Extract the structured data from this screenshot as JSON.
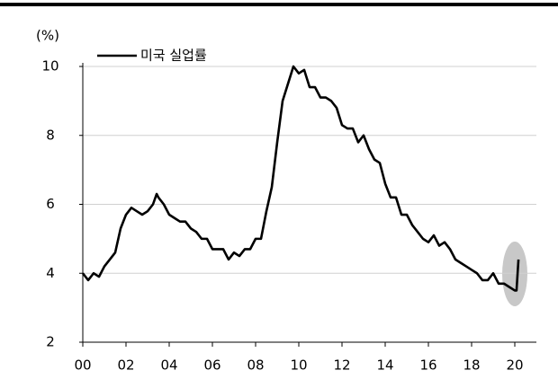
{
  "chart_data": {
    "type": "line",
    "y_unit": "(%)",
    "x": [
      0,
      0.25,
      0.5,
      0.75,
      1,
      1.25,
      1.5,
      1.75,
      2,
      2.25,
      2.5,
      2.75,
      3,
      3.25,
      3.42,
      3.5,
      3.75,
      4,
      4.25,
      4.5,
      4.75,
      5,
      5.25,
      5.5,
      5.75,
      6,
      6.25,
      6.5,
      6.75,
      7,
      7.25,
      7.5,
      7.75,
      8,
      8.25,
      8.5,
      8.75,
      9,
      9.25,
      9.5,
      9.75,
      10,
      10.25,
      10.5,
      10.75,
      11,
      11.25,
      11.5,
      11.75,
      12,
      12.25,
      12.5,
      12.75,
      13,
      13.25,
      13.5,
      13.75,
      14,
      14.25,
      14.5,
      14.75,
      15,
      15.25,
      15.5,
      15.75,
      16,
      16.25,
      16.5,
      16.75,
      17,
      17.25,
      17.5,
      17.75,
      18,
      18.25,
      18.5,
      18.75,
      19,
      19.25,
      19.5,
      19.75,
      20,
      20.08,
      20.17
    ],
    "series": [
      {
        "name": "미국 실업률",
        "color": "#000000",
        "values": [
          4.0,
          3.8,
          4.0,
          3.9,
          4.2,
          4.4,
          4.6,
          5.3,
          5.7,
          5.9,
          5.8,
          5.7,
          5.8,
          6.0,
          6.3,
          6.2,
          6.0,
          5.7,
          5.6,
          5.5,
          5.5,
          5.3,
          5.2,
          5.0,
          5.0,
          4.7,
          4.7,
          4.7,
          4.4,
          4.6,
          4.5,
          4.7,
          4.7,
          5.0,
          5.0,
          5.8,
          6.5,
          7.8,
          9.0,
          9.5,
          10.0,
          9.8,
          9.9,
          9.4,
          9.4,
          9.1,
          9.1,
          9.0,
          8.8,
          8.3,
          8.2,
          8.2,
          7.8,
          8.0,
          7.6,
          7.3,
          7.2,
          6.6,
          6.2,
          6.2,
          5.7,
          5.7,
          5.4,
          5.2,
          5.0,
          4.9,
          5.1,
          4.8,
          4.9,
          4.7,
          4.4,
          4.3,
          4.2,
          4.1,
          4.0,
          3.8,
          3.8,
          4.0,
          3.7,
          3.7,
          3.6,
          3.5,
          3.5,
          4.4
        ]
      }
    ],
    "xlim": [
      0,
      21
    ],
    "xticks": [
      {
        "value": 0,
        "label": "00"
      },
      {
        "value": 2,
        "label": "02"
      },
      {
        "value": 4,
        "label": "04"
      },
      {
        "value": 6,
        "label": "06"
      },
      {
        "value": 8,
        "label": "08"
      },
      10,
      12,
      14,
      16,
      18,
      20
    ],
    "ylim": [
      2,
      10
    ],
    "yticks": [
      2,
      4,
      6,
      8,
      10
    ],
    "grid": true,
    "legend": "top-left"
  }
}
